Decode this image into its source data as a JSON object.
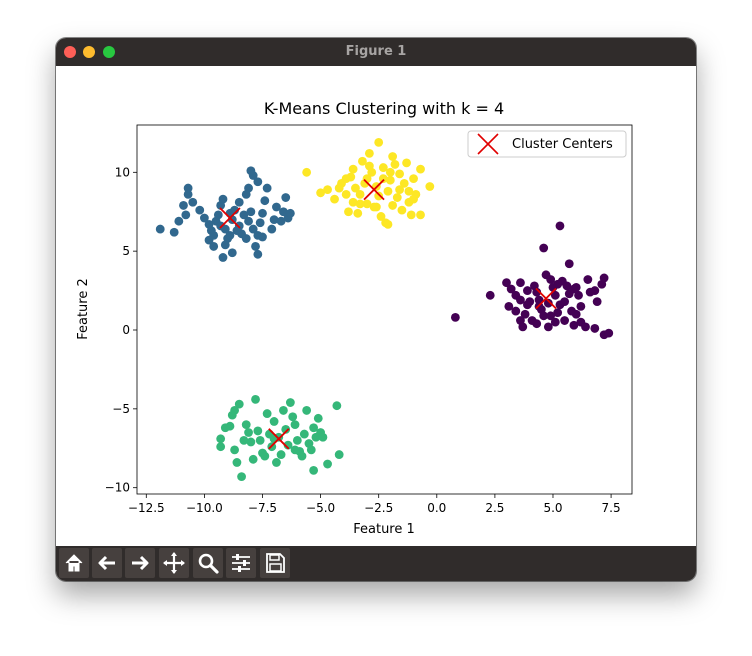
{
  "window": {
    "title": "Figure 1"
  },
  "toolbar": {
    "icons": [
      "home-icon",
      "back-arrow-icon",
      "forward-arrow-icon",
      "pan-move-icon",
      "zoom-magnifier-icon",
      "configure-subplots-icon",
      "save-disk-icon"
    ]
  },
  "colors": {
    "purple": "#440154",
    "blue": "#31688e",
    "green": "#35b779",
    "yellow": "#fde725",
    "centers": "#e00000"
  },
  "chart_data": {
    "type": "scatter",
    "title": "K-Means Clustering with k = 4",
    "xlabel": "Feature 1",
    "ylabel": "Feature 2",
    "xlim": [
      -12.9,
      8.4
    ],
    "ylim": [
      -10.4,
      13.0
    ],
    "xticks": [
      -12.5,
      -10.0,
      -7.5,
      -5.0,
      -2.5,
      0.0,
      2.5,
      5.0,
      7.5
    ],
    "xtick_labels": [
      "−12.5",
      "−10.0",
      "−7.5",
      "−5.0",
      "−2.5",
      "0.0",
      "2.5",
      "5.0",
      "7.5"
    ],
    "yticks": [
      -10,
      -5,
      0,
      5,
      10
    ],
    "ytick_labels": [
      "−10",
      "−5",
      "0",
      "5",
      "10"
    ],
    "legend": {
      "label": "Cluster Centers",
      "placement": "top-right"
    },
    "series": [
      {
        "cluster": 0,
        "color": "#440154",
        "points": [
          [
            0.8,
            0.8
          ],
          [
            2.3,
            2.2
          ],
          [
            3.0,
            3.0
          ],
          [
            3.2,
            2.6
          ],
          [
            3.4,
            2.2
          ],
          [
            3.6,
            1.9
          ],
          [
            3.1,
            1.5
          ],
          [
            3.4,
            1.2
          ],
          [
            3.8,
            1.0
          ],
          [
            3.6,
            0.6
          ],
          [
            3.7,
            0.2
          ],
          [
            4.1,
            0.6
          ],
          [
            3.9,
            1.6
          ],
          [
            4.2,
            2.8
          ],
          [
            4.3,
            2.4
          ],
          [
            4.4,
            1.9
          ],
          [
            4.5,
            1.3
          ],
          [
            4.6,
            0.9
          ],
          [
            4.3,
            0.4
          ],
          [
            4.7,
            3.5
          ],
          [
            4.6,
            5.2
          ],
          [
            4.9,
            3.2
          ],
          [
            5.0,
            2.7
          ],
          [
            5.1,
            2.2
          ],
          [
            5.3,
            1.6
          ],
          [
            5.2,
            1.1
          ],
          [
            5.1,
            0.5
          ],
          [
            4.8,
            0.2
          ],
          [
            5.4,
            3.1
          ],
          [
            5.6,
            2.8
          ],
          [
            5.7,
            2.3
          ],
          [
            5.5,
            1.8
          ],
          [
            5.8,
            1.2
          ],
          [
            5.5,
            0.6
          ],
          [
            5.3,
            6.6
          ],
          [
            5.7,
            4.2
          ],
          [
            6.0,
            2.7
          ],
          [
            6.1,
            2.2
          ],
          [
            6.2,
            1.5
          ],
          [
            6.0,
            1.0
          ],
          [
            6.2,
            0.5
          ],
          [
            6.4,
            0.2
          ],
          [
            6.5,
            3.2
          ],
          [
            6.8,
            2.5
          ],
          [
            6.9,
            1.8
          ],
          [
            7.1,
            2.9
          ],
          [
            7.2,
            3.3
          ],
          [
            7.2,
            -0.3
          ],
          [
            7.4,
            -0.2
          ],
          [
            6.8,
            0.1
          ],
          [
            5.9,
            0.3
          ],
          [
            3.9,
            2.5
          ],
          [
            4.8,
            1.7
          ],
          [
            4.4,
            1.5
          ],
          [
            5.9,
            2.6
          ],
          [
            6.6,
            2.4
          ],
          [
            4.0,
            1.8
          ],
          [
            4.9,
            0.9
          ],
          [
            3.6,
            3.0
          ],
          [
            5.2,
            2.9
          ]
        ]
      },
      {
        "cluster": 1,
        "color": "#31688e",
        "points": [
          [
            -11.9,
            6.4
          ],
          [
            -11.3,
            6.2
          ],
          [
            -11.1,
            6.9
          ],
          [
            -10.8,
            7.3
          ],
          [
            -10.9,
            7.9
          ],
          [
            -10.7,
            8.6
          ],
          [
            -10.7,
            9.0
          ],
          [
            -10.5,
            8.1
          ],
          [
            -10.2,
            7.6
          ],
          [
            -10.0,
            7.1
          ],
          [
            -9.8,
            6.7
          ],
          [
            -9.8,
            5.7
          ],
          [
            -9.6,
            5.3
          ],
          [
            -9.7,
            6.3
          ],
          [
            -9.5,
            6.9
          ],
          [
            -9.4,
            7.3
          ],
          [
            -9.3,
            7.9
          ],
          [
            -9.2,
            8.3
          ],
          [
            -9.1,
            6.4
          ],
          [
            -9.0,
            5.8
          ],
          [
            -9.1,
            5.4
          ],
          [
            -9.2,
            4.6
          ],
          [
            -8.9,
            6.0
          ],
          [
            -8.8,
            7.0
          ],
          [
            -8.7,
            7.6
          ],
          [
            -8.5,
            8.1
          ],
          [
            -8.5,
            6.6
          ],
          [
            -8.4,
            6.1
          ],
          [
            -8.2,
            5.8
          ],
          [
            -8.3,
            7.3
          ],
          [
            -8.2,
            8.6
          ],
          [
            -8.1,
            9.0
          ],
          [
            -8.0,
            7.5
          ],
          [
            -7.9,
            6.4
          ],
          [
            -7.8,
            5.3
          ],
          [
            -7.7,
            4.8
          ],
          [
            -7.7,
            6.0
          ],
          [
            -7.6,
            6.8
          ],
          [
            -7.5,
            7.4
          ],
          [
            -7.4,
            8.2
          ],
          [
            -7.3,
            9.0
          ],
          [
            -7.9,
            9.8
          ],
          [
            -8.0,
            10.1
          ],
          [
            -7.7,
            9.4
          ],
          [
            -7.0,
            7.0
          ],
          [
            -7.1,
            6.4
          ],
          [
            -6.9,
            7.8
          ],
          [
            -6.7,
            6.9
          ],
          [
            -6.6,
            7.5
          ],
          [
            -6.5,
            8.4
          ],
          [
            -6.4,
            7.1
          ],
          [
            -6.3,
            7.4
          ],
          [
            -8.8,
            4.9
          ],
          [
            -9.6,
            6.0
          ],
          [
            -9.3,
            6.6
          ],
          [
            -8.6,
            6.3
          ],
          [
            -8.9,
            7.4
          ],
          [
            -8.1,
            6.9
          ],
          [
            -7.5,
            5.9
          ]
        ]
      },
      {
        "cluster": 2,
        "color": "#35b779",
        "points": [
          [
            -9.3,
            -6.9
          ],
          [
            -9.3,
            -7.4
          ],
          [
            -8.8,
            -5.4
          ],
          [
            -8.7,
            -5.1
          ],
          [
            -8.7,
            -7.6
          ],
          [
            -8.6,
            -8.4
          ],
          [
            -8.5,
            -4.7
          ],
          [
            -8.4,
            -9.3
          ],
          [
            -8.3,
            -7.0
          ],
          [
            -8.2,
            -6.0
          ],
          [
            -8.1,
            -6.5
          ],
          [
            -8.0,
            -7.1
          ],
          [
            -7.9,
            -8.2
          ],
          [
            -7.8,
            -4.4
          ],
          [
            -7.7,
            -6.4
          ],
          [
            -7.6,
            -7.0
          ],
          [
            -7.5,
            -7.8
          ],
          [
            -7.4,
            -8.0
          ],
          [
            -7.3,
            -5.3
          ],
          [
            -7.2,
            -6.6
          ],
          [
            -7.1,
            -7.4
          ],
          [
            -7.0,
            -5.8
          ],
          [
            -6.9,
            -8.4
          ],
          [
            -6.8,
            -6.8
          ],
          [
            -6.7,
            -7.9
          ],
          [
            -6.6,
            -5.1
          ],
          [
            -6.5,
            -6.3
          ],
          [
            -6.4,
            -7.3
          ],
          [
            -6.3,
            -4.6
          ],
          [
            -6.2,
            -5.5
          ],
          [
            -6.1,
            -6.0
          ],
          [
            -6.0,
            -7.0
          ],
          [
            -5.9,
            -7.7
          ],
          [
            -5.8,
            -8.0
          ],
          [
            -5.7,
            -6.6
          ],
          [
            -5.6,
            -5.1
          ],
          [
            -5.5,
            -7.2
          ],
          [
            -5.4,
            -7.6
          ],
          [
            -5.3,
            -8.9
          ],
          [
            -5.2,
            -6.8
          ],
          [
            -5.1,
            -5.6
          ],
          [
            -5.0,
            -6.5
          ],
          [
            -4.9,
            -6.8
          ],
          [
            -4.7,
            -8.5
          ],
          [
            -4.3,
            -4.8
          ],
          [
            -4.2,
            -7.9
          ],
          [
            -8.9,
            -6.1
          ],
          [
            -9.1,
            -6.2
          ],
          [
            -7.0,
            -6.9
          ],
          [
            -6.1,
            -7.6
          ],
          [
            -5.3,
            -6.2
          ]
        ]
      },
      {
        "cluster": 3,
        "color": "#fde725",
        "points": [
          [
            -5.6,
            10.0
          ],
          [
            -5.0,
            8.7
          ],
          [
            -4.7,
            8.9
          ],
          [
            -4.4,
            8.3
          ],
          [
            -4.1,
            9.3
          ],
          [
            -3.9,
            8.6
          ],
          [
            -3.8,
            7.5
          ],
          [
            -3.7,
            9.7
          ],
          [
            -3.6,
            8.1
          ],
          [
            -3.5,
            9.0
          ],
          [
            -3.4,
            7.4
          ],
          [
            -3.3,
            8.6
          ],
          [
            -3.2,
            10.7
          ],
          [
            -3.1,
            9.3
          ],
          [
            -3.0,
            8.0
          ],
          [
            -2.9,
            11.2
          ],
          [
            -2.8,
            10.0
          ],
          [
            -2.7,
            7.8
          ],
          [
            -2.6,
            9.1
          ],
          [
            -2.5,
            8.5
          ],
          [
            -2.4,
            7.2
          ],
          [
            -2.3,
            10.3
          ],
          [
            -2.2,
            6.8
          ],
          [
            -2.1,
            8.8
          ],
          [
            -2.0,
            9.5
          ],
          [
            -1.9,
            7.9
          ],
          [
            -1.9,
            11.0
          ],
          [
            -1.8,
            10.5
          ],
          [
            -1.7,
            8.4
          ],
          [
            -1.6,
            9.9
          ],
          [
            -1.5,
            7.6
          ],
          [
            -1.4,
            9.3
          ],
          [
            -1.3,
            10.6
          ],
          [
            -1.2,
            8.1
          ],
          [
            -1.1,
            7.3
          ],
          [
            -1.0,
            9.6
          ],
          [
            -0.9,
            8.6
          ],
          [
            -0.7,
            7.3
          ],
          [
            -0.7,
            10.2
          ],
          [
            -0.3,
            9.1
          ],
          [
            -2.5,
            11.9
          ],
          [
            -2.9,
            10.4
          ],
          [
            -3.6,
            10.2
          ],
          [
            -3.9,
            9.6
          ],
          [
            -4.2,
            9.0
          ],
          [
            -2.0,
            10.0
          ],
          [
            -2.3,
            9.6
          ],
          [
            -1.6,
            8.9
          ],
          [
            -3.0,
            9.6
          ],
          [
            -2.6,
            7.8
          ],
          [
            -1.2,
            8.8
          ],
          [
            -3.3,
            8.0
          ],
          [
            -2.1,
            6.7
          ],
          [
            -1.0,
            8.3
          ]
        ]
      }
    ],
    "centers": [
      [
        4.7,
        2.0
      ],
      [
        -8.9,
        7.1
      ],
      [
        -6.8,
        -6.9
      ],
      [
        -2.7,
        8.9
      ]
    ]
  }
}
